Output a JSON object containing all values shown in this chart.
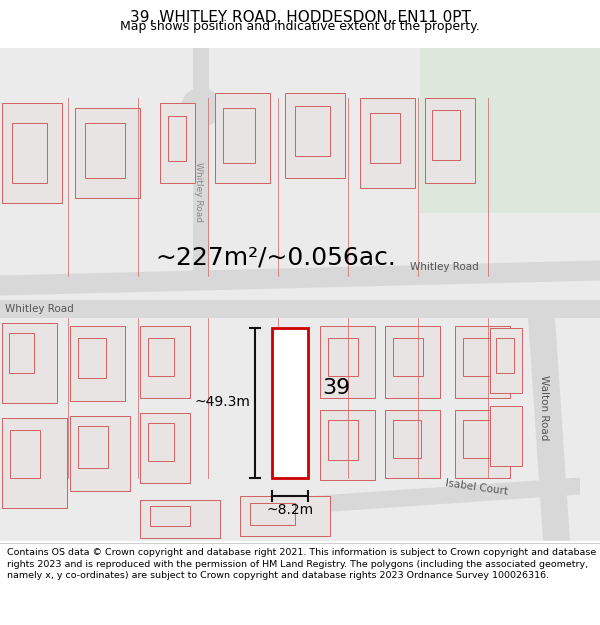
{
  "title": "39, WHITLEY ROAD, HODDESDON, EN11 0PT",
  "subtitle": "Map shows position and indicative extent of the property.",
  "footer": "Contains OS data © Crown copyright and database right 2021. This information is subject to Crown copyright and database rights 2023 and is reproduced with the permission of HM Land Registry. The polygons (including the associated geometry, namely x, y co-ordinates) are subject to Crown copyright and database rights 2023 Ordnance Survey 100026316.",
  "area_text": "~227m²/~0.056ac.",
  "dim_height": "~49.3m",
  "dim_width": "~8.2m",
  "label_number": "39",
  "road_label_top_right": "Whitley Road",
  "road_label_left": "Whitley Road",
  "road_label_vertical": "Whitley Road",
  "road_label_right": "Walton Road",
  "road_label_bottom": "Isabel Court",
  "bg_color": "#ffffff",
  "map_bg": "#ebebeb",
  "green_color": "#dde8dd",
  "road_color": "#d8d8d8",
  "building_fill": "#e8e4e4",
  "building_edge": "#d06060",
  "highlight_edge": "#cc0000",
  "highlight_fill": "#ffffff",
  "dim_color": "#111111",
  "title_fontsize": 11,
  "subtitle_fontsize": 9,
  "footer_fontsize": 6.8,
  "area_fontsize": 18,
  "dim_fontsize": 10,
  "num_fontsize": 16,
  "road_fontsize": 7.5
}
